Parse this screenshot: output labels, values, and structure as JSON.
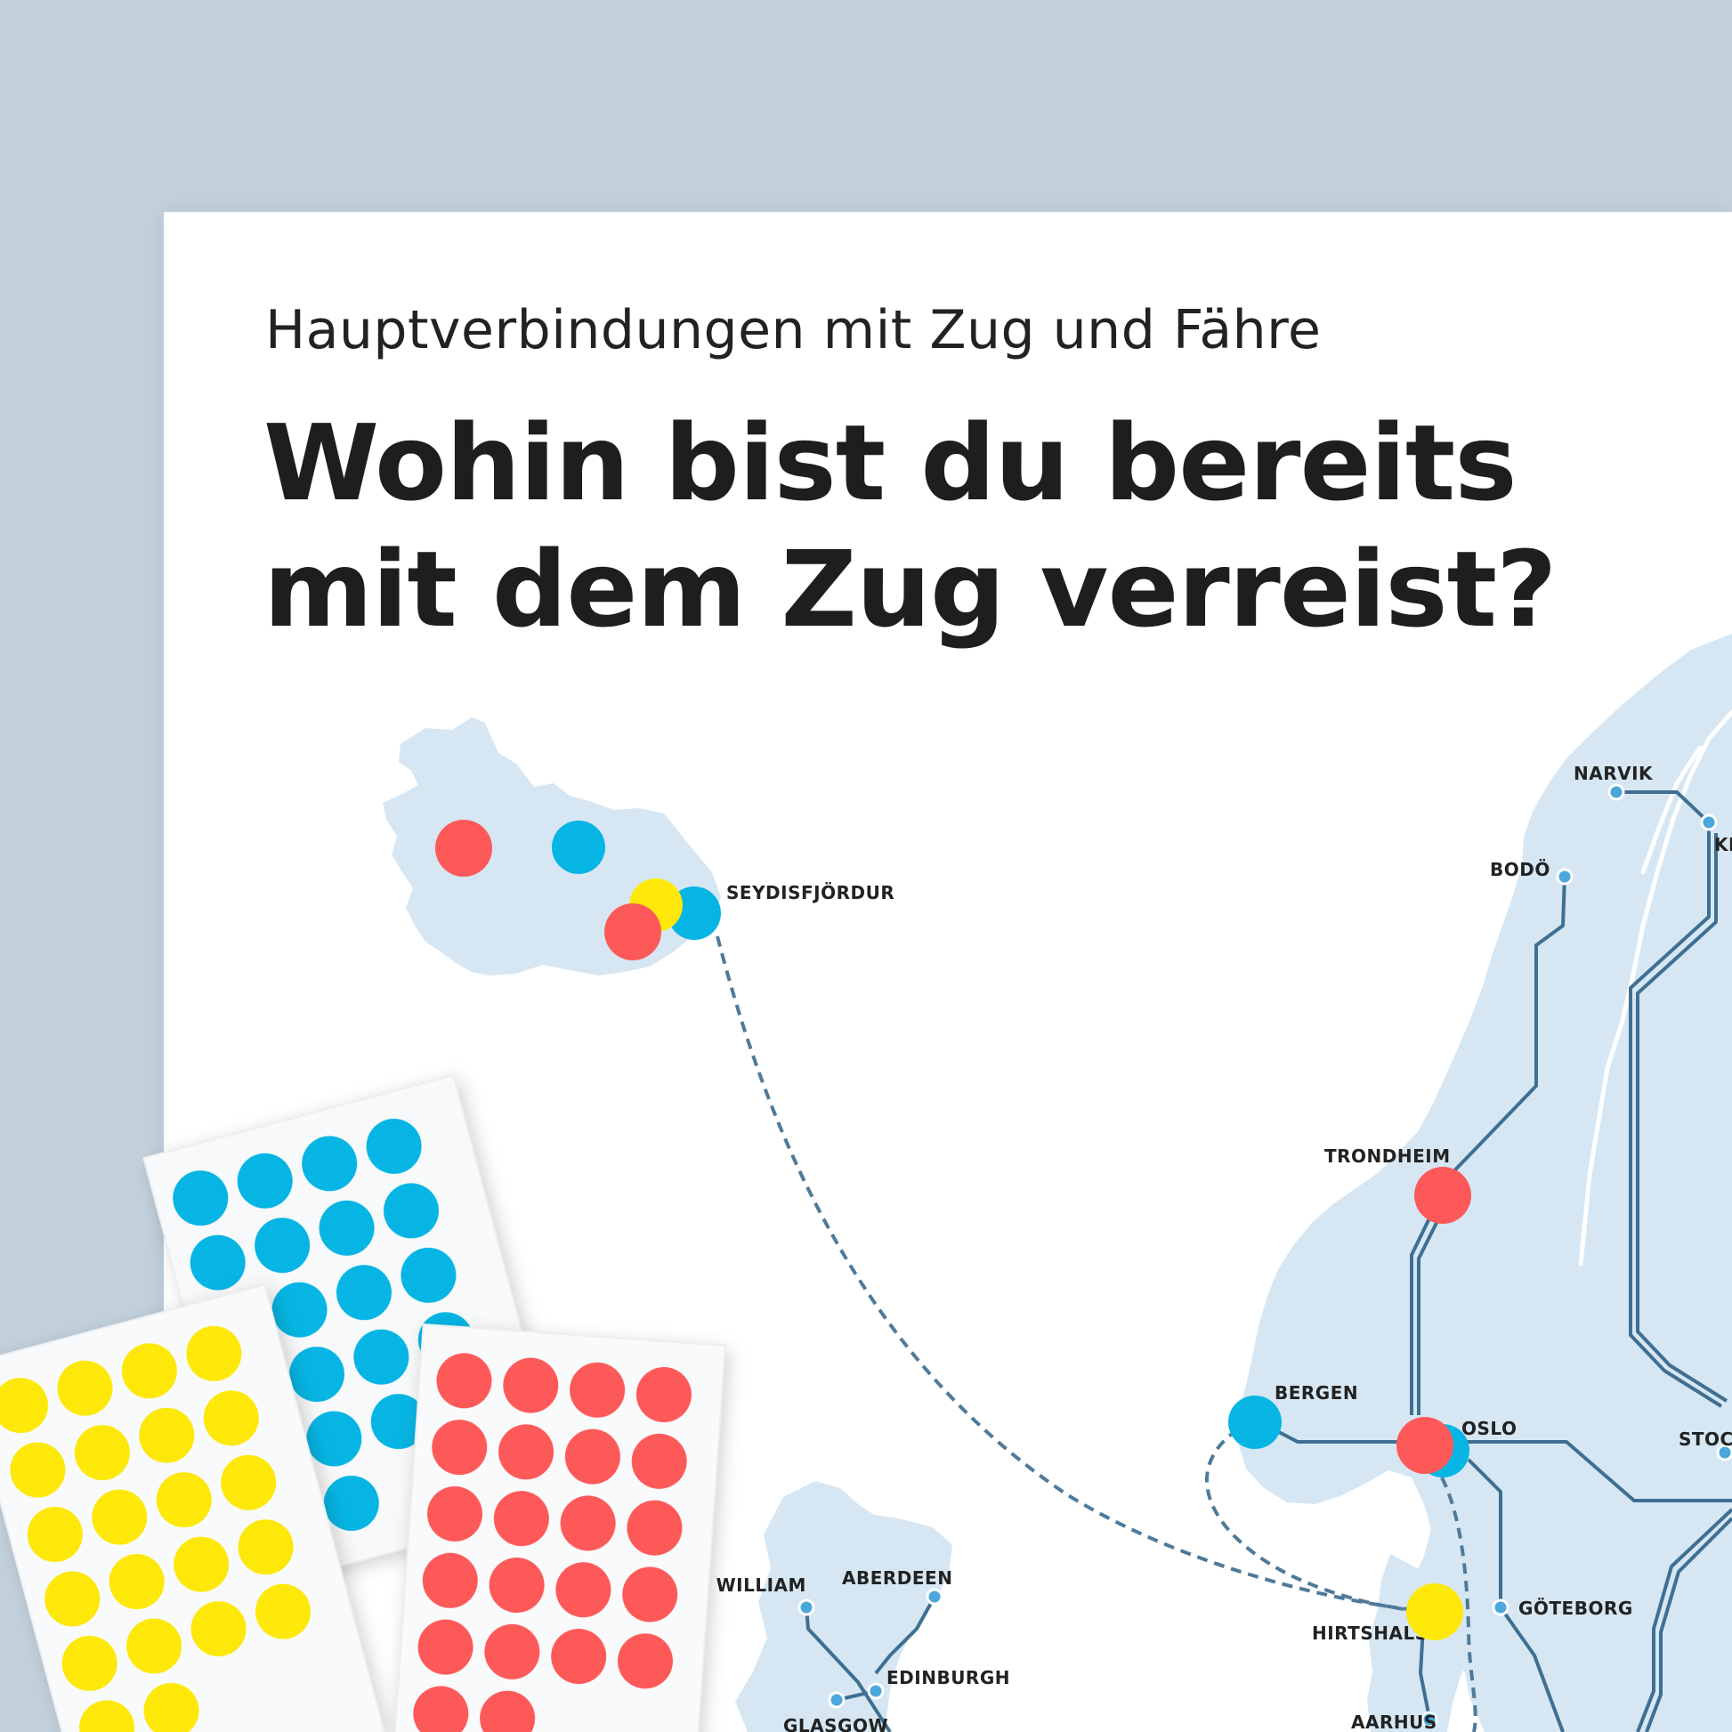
{
  "poster": {
    "subtitle": "Hauptverbindungen mit Zug und Fähre",
    "title_line1": "Wohin bist du bereits",
    "title_line2": "mit dem Zug verreist?"
  },
  "colors": {
    "background": "#c3d1dd",
    "land": "#d6e7f3",
    "rail_line": "#3f6f93",
    "ferry_line": "#4f7a9a",
    "station": "#4aa8dc",
    "sticker_blue": "#06b5e3",
    "sticker_red": "#fd5959",
    "sticker_yellow": "#fde80a"
  },
  "cities": [
    {
      "id": "seydisfjordur",
      "label": "SEYDISFJÖRDUR"
    },
    {
      "id": "narvik",
      "label": "NARVIK"
    },
    {
      "id": "bodo",
      "label": "BODÖ"
    },
    {
      "id": "kiruna",
      "label": "KI"
    },
    {
      "id": "trondheim",
      "label": "TRONDHEIM"
    },
    {
      "id": "bergen",
      "label": "BERGEN"
    },
    {
      "id": "oslo",
      "label": "OSLO"
    },
    {
      "id": "stockholm",
      "label": "STOCK"
    },
    {
      "id": "goteborg",
      "label": "GÖTEBORG"
    },
    {
      "id": "hirtshals",
      "label": "HIRTSHALS"
    },
    {
      "id": "aarhus",
      "label": "AARHUS"
    },
    {
      "id": "fort_william",
      "label": "RT WILLIAM"
    },
    {
      "id": "aberdeen",
      "label": "ABERDEEN"
    },
    {
      "id": "edinburgh",
      "label": "EDINBURGH"
    },
    {
      "id": "glasgow",
      "label": "GLASGOW"
    }
  ],
  "placed_stickers": [
    {
      "location": "iceland-west",
      "color": "red"
    },
    {
      "location": "iceland-north",
      "color": "blue"
    },
    {
      "location": "seydisfjordur",
      "color": "yellow"
    },
    {
      "location": "seydisfjordur",
      "color": "blue"
    },
    {
      "location": "seydisfjordur",
      "color": "red"
    },
    {
      "location": "trondheim",
      "color": "red"
    },
    {
      "location": "bergen",
      "color": "blue"
    },
    {
      "location": "oslo",
      "color": "blue"
    },
    {
      "location": "oslo",
      "color": "red"
    },
    {
      "location": "hirtshals",
      "color": "yellow"
    }
  ],
  "sticker_sheets": [
    {
      "color": "blue",
      "dots": 22
    },
    {
      "color": "yellow",
      "dots": 22
    },
    {
      "color": "red",
      "dots": 22
    }
  ]
}
